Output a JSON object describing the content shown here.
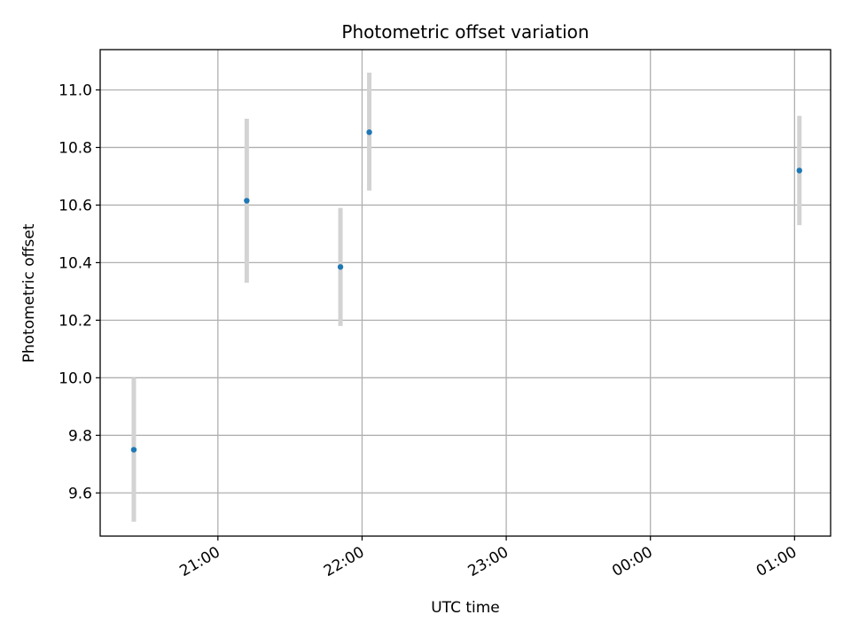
{
  "chart_data": {
    "type": "scatter",
    "title": "Photometric offset variation",
    "xlabel": "UTC time",
    "ylabel": "Photometric offset",
    "x_tick_labels": [
      "21:00",
      "22:00",
      "23:00",
      "00:00",
      "01:00"
    ],
    "y_tick_labels": [
      "9.6",
      "9.8",
      "10.0",
      "10.2",
      "10.4",
      "10.6",
      "10.8",
      "11.0"
    ],
    "y_ticks": [
      9.6,
      9.8,
      10.0,
      10.2,
      10.4,
      10.6,
      10.8,
      11.0
    ],
    "x_ticks": [
      "21:00",
      "22:00",
      "23:00",
      "00:00",
      "01:00"
    ],
    "xlim": [
      "20:11",
      "01:15"
    ],
    "ylim": [
      9.45,
      11.14
    ],
    "grid": true,
    "points": [
      {
        "time": "20:25",
        "y": 9.75,
        "y_low": 9.5,
        "y_high": 10.0
      },
      {
        "time": "21:12",
        "y": 10.615,
        "y_low": 10.33,
        "y_high": 10.9
      },
      {
        "time": "21:51",
        "y": 10.385,
        "y_low": 10.18,
        "y_high": 10.59
      },
      {
        "time": "22:03",
        "y": 10.853,
        "y_low": 10.65,
        "y_high": 11.06
      },
      {
        "time": "01:02",
        "y": 10.72,
        "y_low": 10.53,
        "y_high": 10.91
      }
    ],
    "colors": {
      "marker": "#1f77b4",
      "errorbar": "#d3d3d3",
      "grid": "#b0b0b0",
      "axes": "#000000"
    }
  }
}
